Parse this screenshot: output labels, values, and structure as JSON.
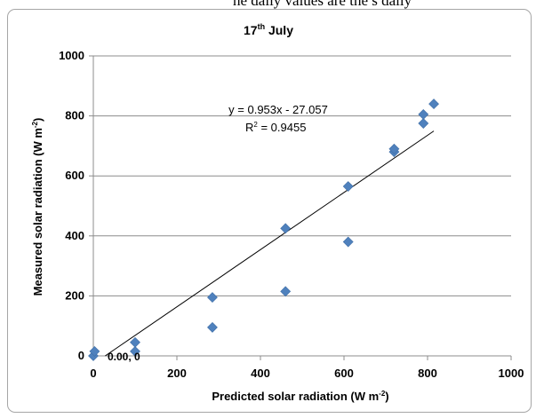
{
  "caption": "he  daily  values  are  the  s  daily",
  "chart_data": {
    "type": "scatter",
    "title": "17",
    "title_suffix": "th",
    "title_rest": " July",
    "xlabel": "Predicted solar radiation (W m",
    "xlabel_sup": "-2",
    "xlabel_end": ")",
    "ylabel": "Measured solar radiation (W m",
    "ylabel_sup": "-2",
    "ylabel_end": ")",
    "xlim": [
      0,
      1000
    ],
    "ylim": [
      0,
      1000
    ],
    "x_ticks": [
      "0",
      "200",
      "400",
      "600",
      "800",
      "1000"
    ],
    "y_ticks": [
      "0",
      "200",
      "400",
      "600",
      "800",
      "1000"
    ],
    "grid": "horizontal",
    "marker_color": "#4f81bd",
    "points": [
      {
        "x": 0,
        "y": 0
      },
      {
        "x": 3,
        "y": 15
      },
      {
        "x": 100,
        "y": 15
      },
      {
        "x": 100,
        "y": 45
      },
      {
        "x": 285,
        "y": 95
      },
      {
        "x": 285,
        "y": 195
      },
      {
        "x": 460,
        "y": 215
      },
      {
        "x": 460,
        "y": 425
      },
      {
        "x": 610,
        "y": 380
      },
      {
        "x": 610,
        "y": 565
      },
      {
        "x": 720,
        "y": 680
      },
      {
        "x": 720,
        "y": 690
      },
      {
        "x": 790,
        "y": 775
      },
      {
        "x": 790,
        "y": 805
      },
      {
        "x": 815,
        "y": 840
      }
    ],
    "point_label": "0.00, 0",
    "trendline": {
      "slope": 0.953,
      "intercept": -27.057,
      "x_range": [
        28.4,
        815
      ],
      "equation": "y = 0.953x - 27.057",
      "r2_prefix": "R",
      "r2_sup": "2",
      "r2_value": " = 0.9455"
    }
  }
}
